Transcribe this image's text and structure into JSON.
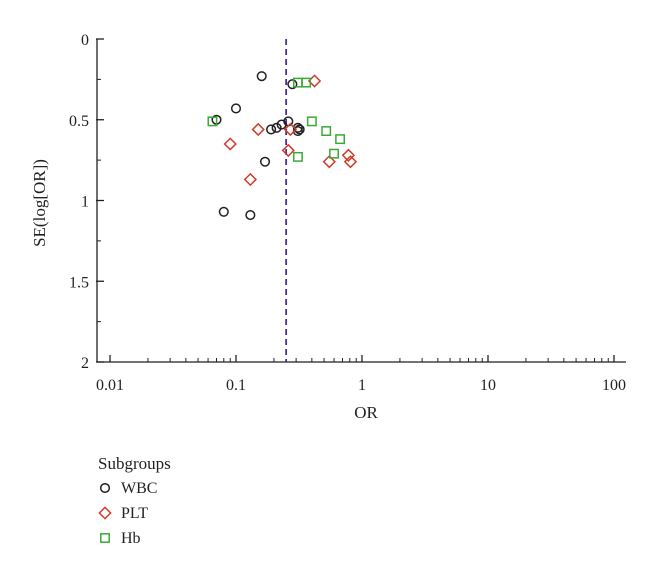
{
  "chart_data": {
    "type": "scatter",
    "subtype": "funnel",
    "title": "",
    "xlabel": "OR",
    "ylabel": "SE(log[OR])",
    "x_scale": "log",
    "xlim": [
      0.01,
      100
    ],
    "ylim": [
      0,
      2
    ],
    "y_inverted": true,
    "x_ticks": [
      0.01,
      0.1,
      1,
      10,
      100
    ],
    "x_tick_labels": [
      "0.01",
      "0.1",
      "1",
      "10",
      "100"
    ],
    "y_ticks": [
      0,
      0.5,
      1,
      1.5,
      2
    ],
    "y_tick_labels": [
      "0",
      "0.5",
      "1",
      "1.5",
      "2"
    ],
    "grid": false,
    "reference_line": {
      "x": 0.25,
      "style": "dashed",
      "color": "#4b2a99"
    },
    "legend": {
      "title": "Subgroups",
      "position": "bottom-left",
      "entries": [
        "WBC",
        "PLT",
        "Hb"
      ]
    },
    "series": [
      {
        "name": "WBC",
        "marker": "circle",
        "color": "#231f20",
        "points": [
          {
            "x": 0.16,
            "y": 0.23
          },
          {
            "x": 0.28,
            "y": 0.28
          },
          {
            "x": 0.1,
            "y": 0.43
          },
          {
            "x": 0.07,
            "y": 0.5
          },
          {
            "x": 0.26,
            "y": 0.51
          },
          {
            "x": 0.23,
            "y": 0.53
          },
          {
            "x": 0.21,
            "y": 0.55
          },
          {
            "x": 0.19,
            "y": 0.56
          },
          {
            "x": 0.31,
            "y": 0.55
          },
          {
            "x": 0.32,
            "y": 0.56
          },
          {
            "x": 0.31,
            "y": 0.57
          },
          {
            "x": 0.17,
            "y": 0.76
          },
          {
            "x": 0.08,
            "y": 1.07
          },
          {
            "x": 0.13,
            "y": 1.09
          }
        ]
      },
      {
        "name": "PLT",
        "marker": "diamond",
        "color": "#d1392b",
        "points": [
          {
            "x": 0.42,
            "y": 0.26
          },
          {
            "x": 0.15,
            "y": 0.56
          },
          {
            "x": 0.27,
            "y": 0.56
          },
          {
            "x": 0.09,
            "y": 0.65
          },
          {
            "x": 0.26,
            "y": 0.69
          },
          {
            "x": 0.78,
            "y": 0.72
          },
          {
            "x": 0.81,
            "y": 0.76
          },
          {
            "x": 0.55,
            "y": 0.76
          },
          {
            "x": 0.13,
            "y": 0.87
          }
        ]
      },
      {
        "name": "Hb",
        "marker": "square",
        "color": "#3aa935",
        "points": [
          {
            "x": 0.31,
            "y": 0.27
          },
          {
            "x": 0.36,
            "y": 0.27
          },
          {
            "x": 0.065,
            "y": 0.51
          },
          {
            "x": 0.4,
            "y": 0.51
          },
          {
            "x": 0.52,
            "y": 0.57
          },
          {
            "x": 0.67,
            "y": 0.62
          },
          {
            "x": 0.6,
            "y": 0.71
          },
          {
            "x": 0.31,
            "y": 0.73
          }
        ]
      }
    ]
  }
}
